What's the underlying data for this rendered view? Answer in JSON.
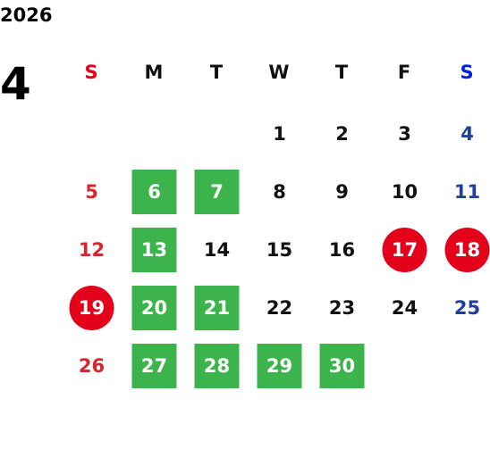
{
  "year": "2026",
  "month": "4",
  "weekdays": [
    "S",
    "M",
    "T",
    "W",
    "T",
    "F",
    "S"
  ],
  "highlight_colors": {
    "green": "#3cb44b",
    "red": "#e3001b"
  },
  "weeks": [
    [
      null,
      null,
      null,
      {
        "day": 1
      },
      {
        "day": 2
      },
      {
        "day": 3
      },
      {
        "day": 4
      }
    ],
    [
      {
        "day": 5
      },
      {
        "day": 6,
        "highlight": "green"
      },
      {
        "day": 7,
        "highlight": "green"
      },
      {
        "day": 8
      },
      {
        "day": 9
      },
      {
        "day": 10
      },
      {
        "day": 11
      }
    ],
    [
      {
        "day": 12
      },
      {
        "day": 13,
        "highlight": "green"
      },
      {
        "day": 14
      },
      {
        "day": 15
      },
      {
        "day": 16
      },
      {
        "day": 17,
        "highlight": "red"
      },
      {
        "day": 18,
        "highlight": "red"
      }
    ],
    [
      {
        "day": 19,
        "highlight": "red"
      },
      {
        "day": 20,
        "highlight": "green"
      },
      {
        "day": 21,
        "highlight": "green"
      },
      {
        "day": 22
      },
      {
        "day": 23
      },
      {
        "day": 24
      },
      {
        "day": 25
      }
    ],
    [
      {
        "day": 26
      },
      {
        "day": 27,
        "highlight": "green"
      },
      {
        "day": 28,
        "highlight": "green"
      },
      {
        "day": 29,
        "highlight": "green"
      },
      {
        "day": 30,
        "highlight": "green"
      },
      null,
      null
    ]
  ]
}
